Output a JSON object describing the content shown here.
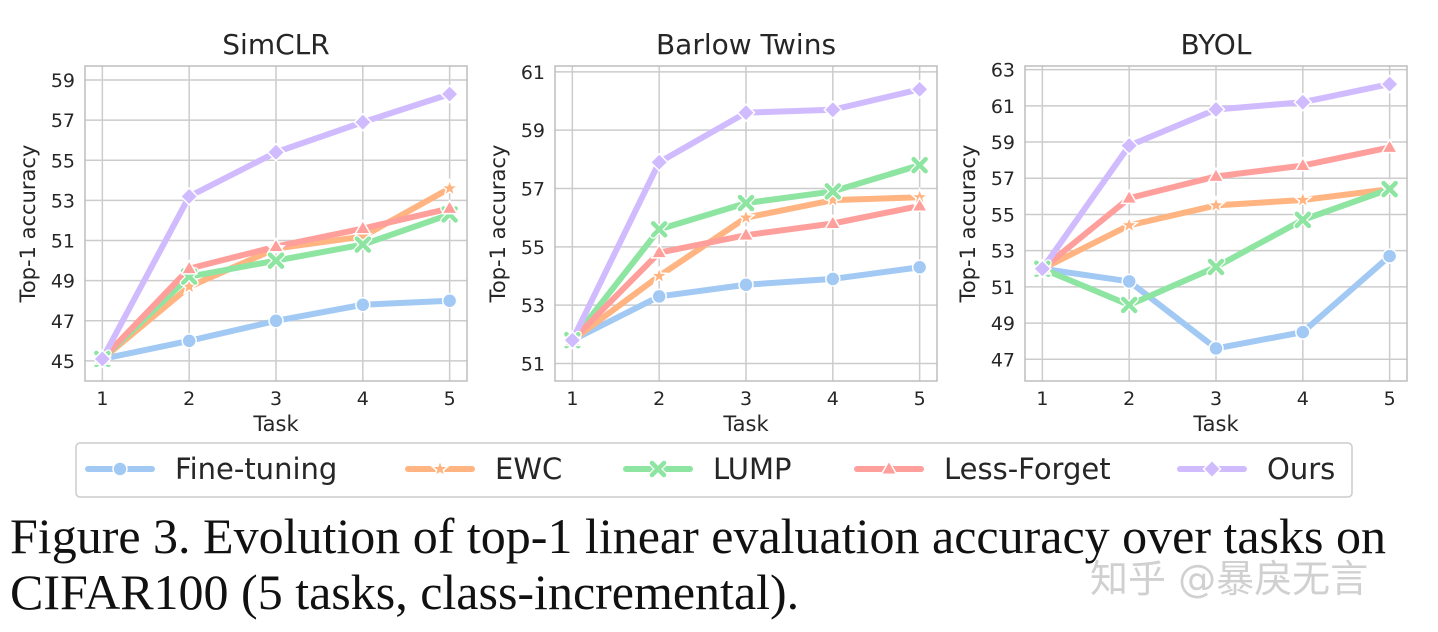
{
  "chart_data": [
    {
      "type": "line",
      "title": "SimCLR",
      "xlabel": "Task",
      "ylabel": "Top-1 accuracy",
      "x": [
        1,
        2,
        3,
        4,
        5
      ],
      "ylim": [
        44,
        59.7
      ],
      "yticks": [
        45,
        47,
        49,
        51,
        53,
        55,
        57,
        59
      ],
      "grid": true,
      "series": [
        {
          "name": "Fine-tuning",
          "values": [
            45.1,
            46.0,
            47.0,
            47.8,
            48.0
          ]
        },
        {
          "name": "EWC",
          "values": [
            45.1,
            48.7,
            50.6,
            51.2,
            53.6
          ]
        },
        {
          "name": "LUMP",
          "values": [
            45.1,
            49.2,
            50.0,
            50.8,
            52.3
          ]
        },
        {
          "name": "Less-Forget",
          "values": [
            45.1,
            49.6,
            50.7,
            51.6,
            52.6
          ]
        },
        {
          "name": "Ours",
          "values": [
            45.1,
            53.2,
            55.4,
            56.9,
            58.3
          ]
        }
      ]
    },
    {
      "type": "line",
      "title": "Barlow Twins",
      "xlabel": "Task",
      "ylabel": "Top-1 accuracy",
      "x": [
        1,
        2,
        3,
        4,
        5
      ],
      "ylim": [
        50.4,
        61.2
      ],
      "yticks": [
        51,
        53,
        55,
        57,
        59,
        61
      ],
      "grid": true,
      "series": [
        {
          "name": "Fine-tuning",
          "values": [
            51.8,
            53.3,
            53.7,
            53.9,
            54.3
          ]
        },
        {
          "name": "EWC",
          "values": [
            51.8,
            54.0,
            56.0,
            56.6,
            56.7
          ]
        },
        {
          "name": "LUMP",
          "values": [
            51.8,
            55.6,
            56.5,
            56.9,
            57.8
          ]
        },
        {
          "name": "Less-Forget",
          "values": [
            51.8,
            54.8,
            55.4,
            55.8,
            56.4
          ]
        },
        {
          "name": "Ours",
          "values": [
            51.8,
            57.9,
            59.6,
            59.7,
            60.4
          ]
        }
      ]
    },
    {
      "type": "line",
      "title": "BYOL",
      "xlabel": "Task",
      "ylabel": "Top-1 accuracy",
      "x": [
        1,
        2,
        3,
        4,
        5
      ],
      "ylim": [
        45.8,
        63.2
      ],
      "yticks": [
        47,
        49,
        51,
        53,
        55,
        57,
        59,
        61,
        63
      ],
      "grid": true,
      "series": [
        {
          "name": "Fine-tuning",
          "values": [
            52.0,
            51.3,
            47.6,
            48.5,
            52.7
          ]
        },
        {
          "name": "EWC",
          "values": [
            52.0,
            54.4,
            55.5,
            55.8,
            56.4
          ]
        },
        {
          "name": "LUMP",
          "values": [
            52.0,
            50.0,
            52.1,
            54.7,
            56.4
          ]
        },
        {
          "name": "Less-Forget",
          "values": [
            52.0,
            55.9,
            57.1,
            57.7,
            58.7
          ]
        },
        {
          "name": "Ours",
          "values": [
            52.0,
            58.8,
            60.8,
            61.2,
            62.2
          ]
        }
      ]
    }
  ],
  "series_styles": [
    {
      "name": "Fine-tuning",
      "color": "#a1c9f4",
      "marker": "circle"
    },
    {
      "name": "EWC",
      "color": "#ffb482",
      "marker": "star"
    },
    {
      "name": "LUMP",
      "color": "#8de5a1",
      "marker": "x"
    },
    {
      "name": "Less-Forget",
      "color": "#ff9f9b",
      "marker": "triangle"
    },
    {
      "name": "Ours",
      "color": "#d0bbff",
      "marker": "diamond"
    }
  ],
  "legend": {
    "placement": "bottom",
    "entries": [
      "Fine-tuning",
      "EWC",
      "LUMP",
      "Less-Forget",
      "Ours"
    ]
  },
  "caption": "Figure 3. Evolution of top-1 linear evaluation accuracy over tasks on CIFAR100 (5 tasks, class-incremental).",
  "watermark": "知乎 @暴戾无言"
}
